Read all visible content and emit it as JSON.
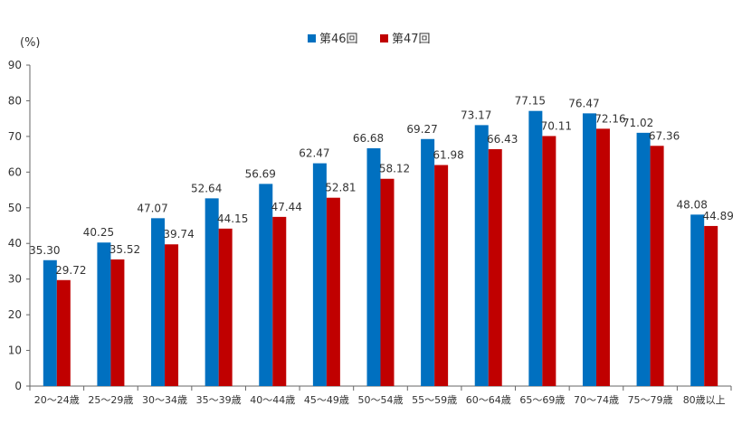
{
  "chart_data": {
    "type": "bar",
    "unit_label": "(%)",
    "categories": [
      "20～24歳",
      "25～29歳",
      "30～34歳",
      "35～39歳",
      "40～44歳",
      "45～49歳",
      "50～54歳",
      "55～59歳",
      "60～64歳",
      "65～69歳",
      "70～74歳",
      "75～79歳",
      "80歳以上"
    ],
    "series": [
      {
        "name": "第46回",
        "color": "#0070c0",
        "values": [
          35.3,
          40.25,
          47.07,
          52.64,
          56.69,
          62.47,
          66.68,
          69.27,
          73.17,
          77.15,
          76.47,
          71.02,
          48.08
        ]
      },
      {
        "name": "第47回",
        "color": "#c00000",
        "values": [
          29.72,
          35.52,
          39.74,
          44.15,
          47.44,
          52.81,
          58.12,
          61.98,
          66.43,
          70.11,
          72.16,
          67.36,
          44.89
        ]
      }
    ],
    "ylim": [
      0,
      90
    ],
    "yticks": [
      0,
      10,
      20,
      30,
      40,
      50,
      60,
      70,
      80,
      90
    ],
    "grid": false,
    "legend_position": "top-center",
    "value_format": "fixed-2"
  }
}
